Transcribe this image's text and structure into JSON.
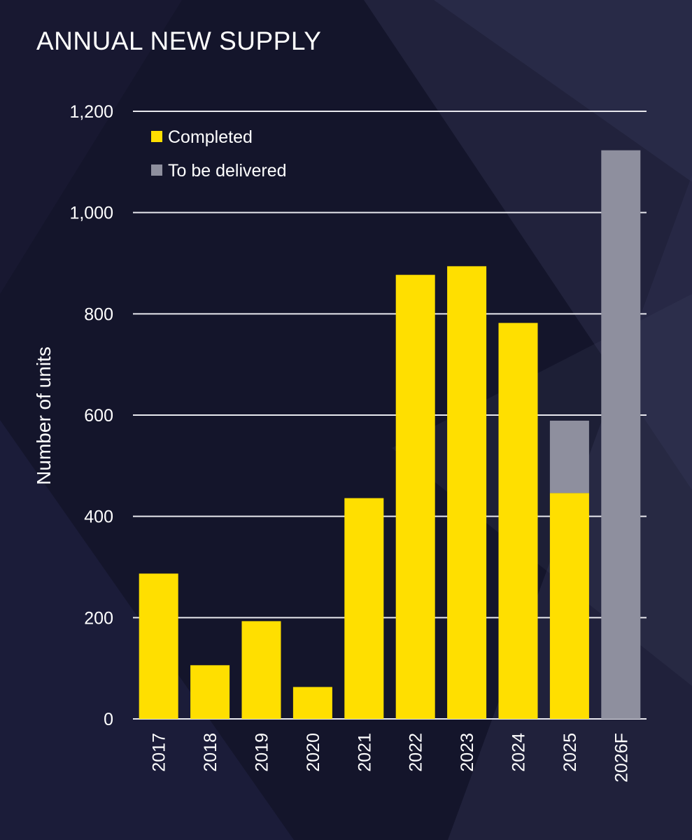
{
  "chart_data": {
    "type": "bar",
    "stacked": true,
    "title": "ANNUAL NEW SUPPLY",
    "xlabel": "",
    "ylabel": "Number of units",
    "ylim": [
      0,
      1200
    ],
    "yticks": [
      0,
      200,
      400,
      600,
      800,
      1000,
      1200
    ],
    "ytick_labels": [
      "0",
      "200",
      "400",
      "600",
      "800",
      "1,000",
      "1,200"
    ],
    "grid": true,
    "legend_position": "top-left",
    "categories": [
      "2017",
      "2018",
      "2019",
      "2020",
      "2021",
      "2022",
      "2023",
      "2024",
      "2025",
      "2026F"
    ],
    "series": [
      {
        "name": "Completed",
        "color": "#ffdf00",
        "values": [
          287,
          106,
          193,
          63,
          436,
          877,
          894,
          782,
          446,
          0
        ]
      },
      {
        "name": "To be delivered",
        "color": "#8e8f9e",
        "values": [
          0,
          0,
          0,
          0,
          0,
          0,
          0,
          0,
          143,
          1123
        ]
      }
    ]
  }
}
